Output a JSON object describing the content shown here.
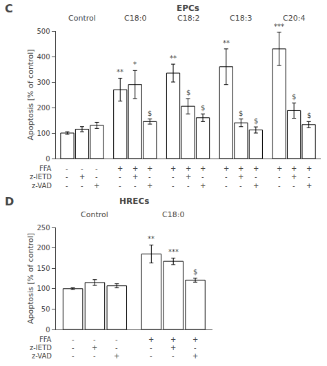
{
  "chart_data": [
    {
      "type": "bar",
      "panel_label": "C",
      "title": "EPCs",
      "ylabel": "Apoptosis [% of control]",
      "categories": [
        "Control",
        "C18:0",
        "C18:2",
        "C18:3",
        "C20:4"
      ],
      "series": [
        {
          "values": [
            100,
            270,
            335,
            360,
            430
          ],
          "errors": [
            5,
            45,
            35,
            70,
            65
          ],
          "annotations": [
            null,
            "**",
            "**",
            "**",
            "***"
          ]
        },
        {
          "values": [
            115,
            290,
            205,
            140,
            188
          ],
          "errors": [
            10,
            55,
            30,
            15,
            30
          ],
          "annotations": [
            null,
            "*",
            "$",
            "$",
            "$"
          ]
        },
        {
          "values": [
            130,
            145,
            160,
            112,
            133
          ],
          "errors": [
            12,
            10,
            15,
            12,
            12
          ],
          "annotations": [
            null,
            "$",
            "$",
            "$",
            "$"
          ]
        }
      ],
      "table": [
        {
          "label": "FFA",
          "cells": [
            "-",
            "-",
            "-",
            "+",
            "+",
            "+",
            "+",
            "+",
            "+",
            "+",
            "+",
            "+",
            "+",
            "+",
            "+"
          ]
        },
        {
          "label": "z-IETD",
          "cells": [
            "-",
            "+",
            "-",
            "-",
            "+",
            "-",
            "-",
            "+",
            "-",
            "-",
            "+",
            "-",
            "-",
            "+",
            "-"
          ]
        },
        {
          "label": "z-VAD",
          "cells": [
            "-",
            "-",
            "+",
            "-",
            "-",
            "+",
            "-",
            "-",
            "+",
            "-",
            "-",
            "+",
            "-",
            "-",
            "+"
          ]
        }
      ],
      "color": "#ffffff",
      "ylim": [
        0,
        500
      ],
      "yticks": [
        0,
        100,
        200,
        300,
        400,
        500
      ],
      "grid": false,
      "tick_labels": "y"
    },
    {
      "type": "bar",
      "panel_label": "D",
      "title": "HRECs",
      "ylabel": "Apoptosis [% of control]",
      "categories": [
        "Control",
        "C18:0"
      ],
      "series": [
        {
          "values": [
            100,
            185
          ],
          "errors": [
            2,
            22
          ],
          "annotations": [
            null,
            "**"
          ]
        },
        {
          "values": [
            115,
            167
          ],
          "errors": [
            7,
            8
          ],
          "annotations": [
            null,
            "***"
          ]
        },
        {
          "values": [
            107,
            121
          ],
          "errors": [
            5,
            5
          ],
          "annotations": [
            null,
            "$"
          ]
        }
      ],
      "table": [
        {
          "label": "FFA",
          "cells": [
            "-",
            "-",
            "-",
            "+",
            "+",
            "+"
          ]
        },
        {
          "label": "z-IETD",
          "cells": [
            "-",
            "+",
            "-",
            "-",
            "+",
            "-"
          ]
        },
        {
          "label": "z-VAD",
          "cells": [
            "-",
            "-",
            "+",
            "-",
            "-",
            "+"
          ]
        }
      ],
      "color": "#ffffff",
      "ylim": [
        0,
        250
      ],
      "yticks": [
        0,
        50,
        100,
        150,
        200,
        250
      ],
      "grid": false,
      "tick_labels": "y"
    }
  ]
}
